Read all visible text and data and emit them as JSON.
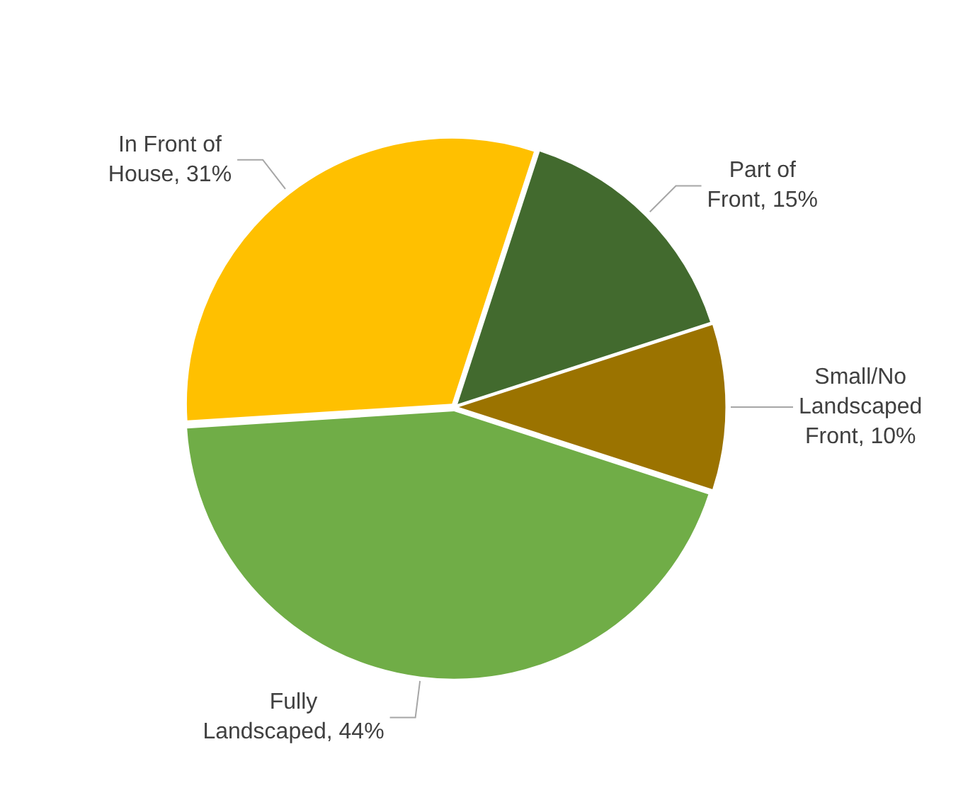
{
  "chart_data": {
    "type": "pie",
    "categories": [
      "Part of Front",
      "Small/No Landscaped Front",
      "Fully Landscaped",
      "In Front of House"
    ],
    "values": [
      15,
      10,
      44,
      31
    ],
    "colors": [
      "#426a2e",
      "#9b7300",
      "#70ad47",
      "#ffc000"
    ],
    "value_labels": [
      "15%",
      "10%",
      "44%",
      "31%"
    ],
    "legend": false
  }
}
